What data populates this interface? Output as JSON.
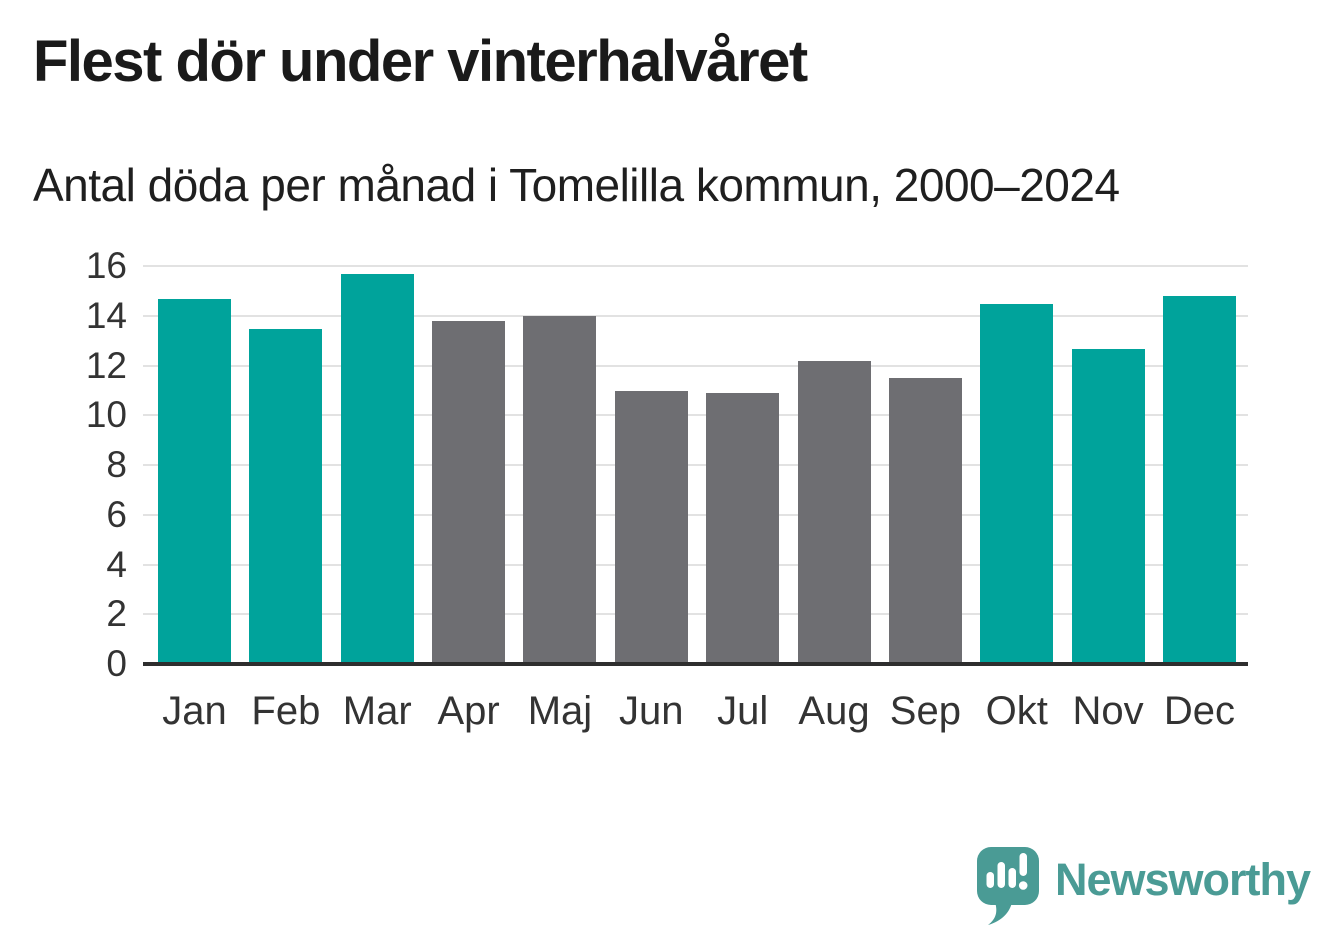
{
  "header": {
    "title": "Flest dör under vinterhalvåret",
    "subtitle": "Antal döda per månad i Tomelilla kommun, 2000–2024"
  },
  "chart_data": {
    "type": "bar",
    "title": "Flest dör under vinterhalvåret",
    "subtitle": "Antal döda per månad i Tomelilla kommun, 2000–2024",
    "categories": [
      "Jan",
      "Feb",
      "Mar",
      "Apr",
      "Maj",
      "Jun",
      "Jul",
      "Aug",
      "Sep",
      "Okt",
      "Nov",
      "Dec"
    ],
    "values": [
      14.6,
      13.4,
      15.6,
      13.7,
      13.9,
      10.9,
      10.8,
      12.1,
      11.4,
      14.4,
      12.6,
      14.7
    ],
    "bar_colors": [
      "teal",
      "teal",
      "teal",
      "gray",
      "gray",
      "gray",
      "gray",
      "gray",
      "gray",
      "teal",
      "teal",
      "teal"
    ],
    "palette": {
      "teal": "#00a39b",
      "gray": "#6e6e72"
    },
    "xlabel": "",
    "ylabel": "",
    "ylim": [
      0,
      16
    ],
    "yticks": [
      0,
      2,
      4,
      6,
      8,
      10,
      12,
      14,
      16
    ],
    "grid": "horizontal-only",
    "legend": "none"
  },
  "footer": {
    "brand": "Newsworthy",
    "brand_color": "#4a9b95",
    "logo_icon": "speech-bubble-bar-chart-exclamation"
  }
}
